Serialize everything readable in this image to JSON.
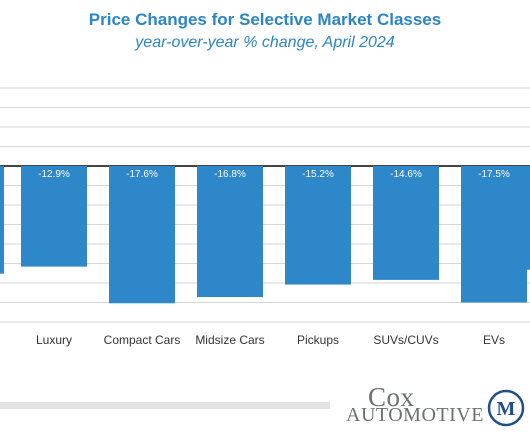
{
  "header": {
    "title": "Price Changes for Selective Market Classes",
    "subtitle": "year-over-year % change, April 2024"
  },
  "chart_data": {
    "type": "bar",
    "title": "Price Changes for Selective Market Classes",
    "subtitle": "year-over-year % change, April 2024",
    "categories": [
      "Luxury",
      "Compact Cars",
      "Midsize Cars",
      "Pickups",
      "SUVs/CUVs",
      "EVs"
    ],
    "values": [
      -12.9,
      -17.6,
      -16.8,
      -15.2,
      -14.6,
      -17.5
    ],
    "data_labels": [
      "-12.9%",
      "-17.6%",
      "-16.8%",
      "-15.2%",
      "-14.6%",
      "-17.5%"
    ],
    "ylim": [
      -20,
      10
    ],
    "grid": true,
    "bar_color": "#2e87c8",
    "title_color": "#2a86c7"
  },
  "branding": {
    "logo_line1": "Cox",
    "logo_line2": "AUTOMOTIVE",
    "logo_mark": "M"
  }
}
